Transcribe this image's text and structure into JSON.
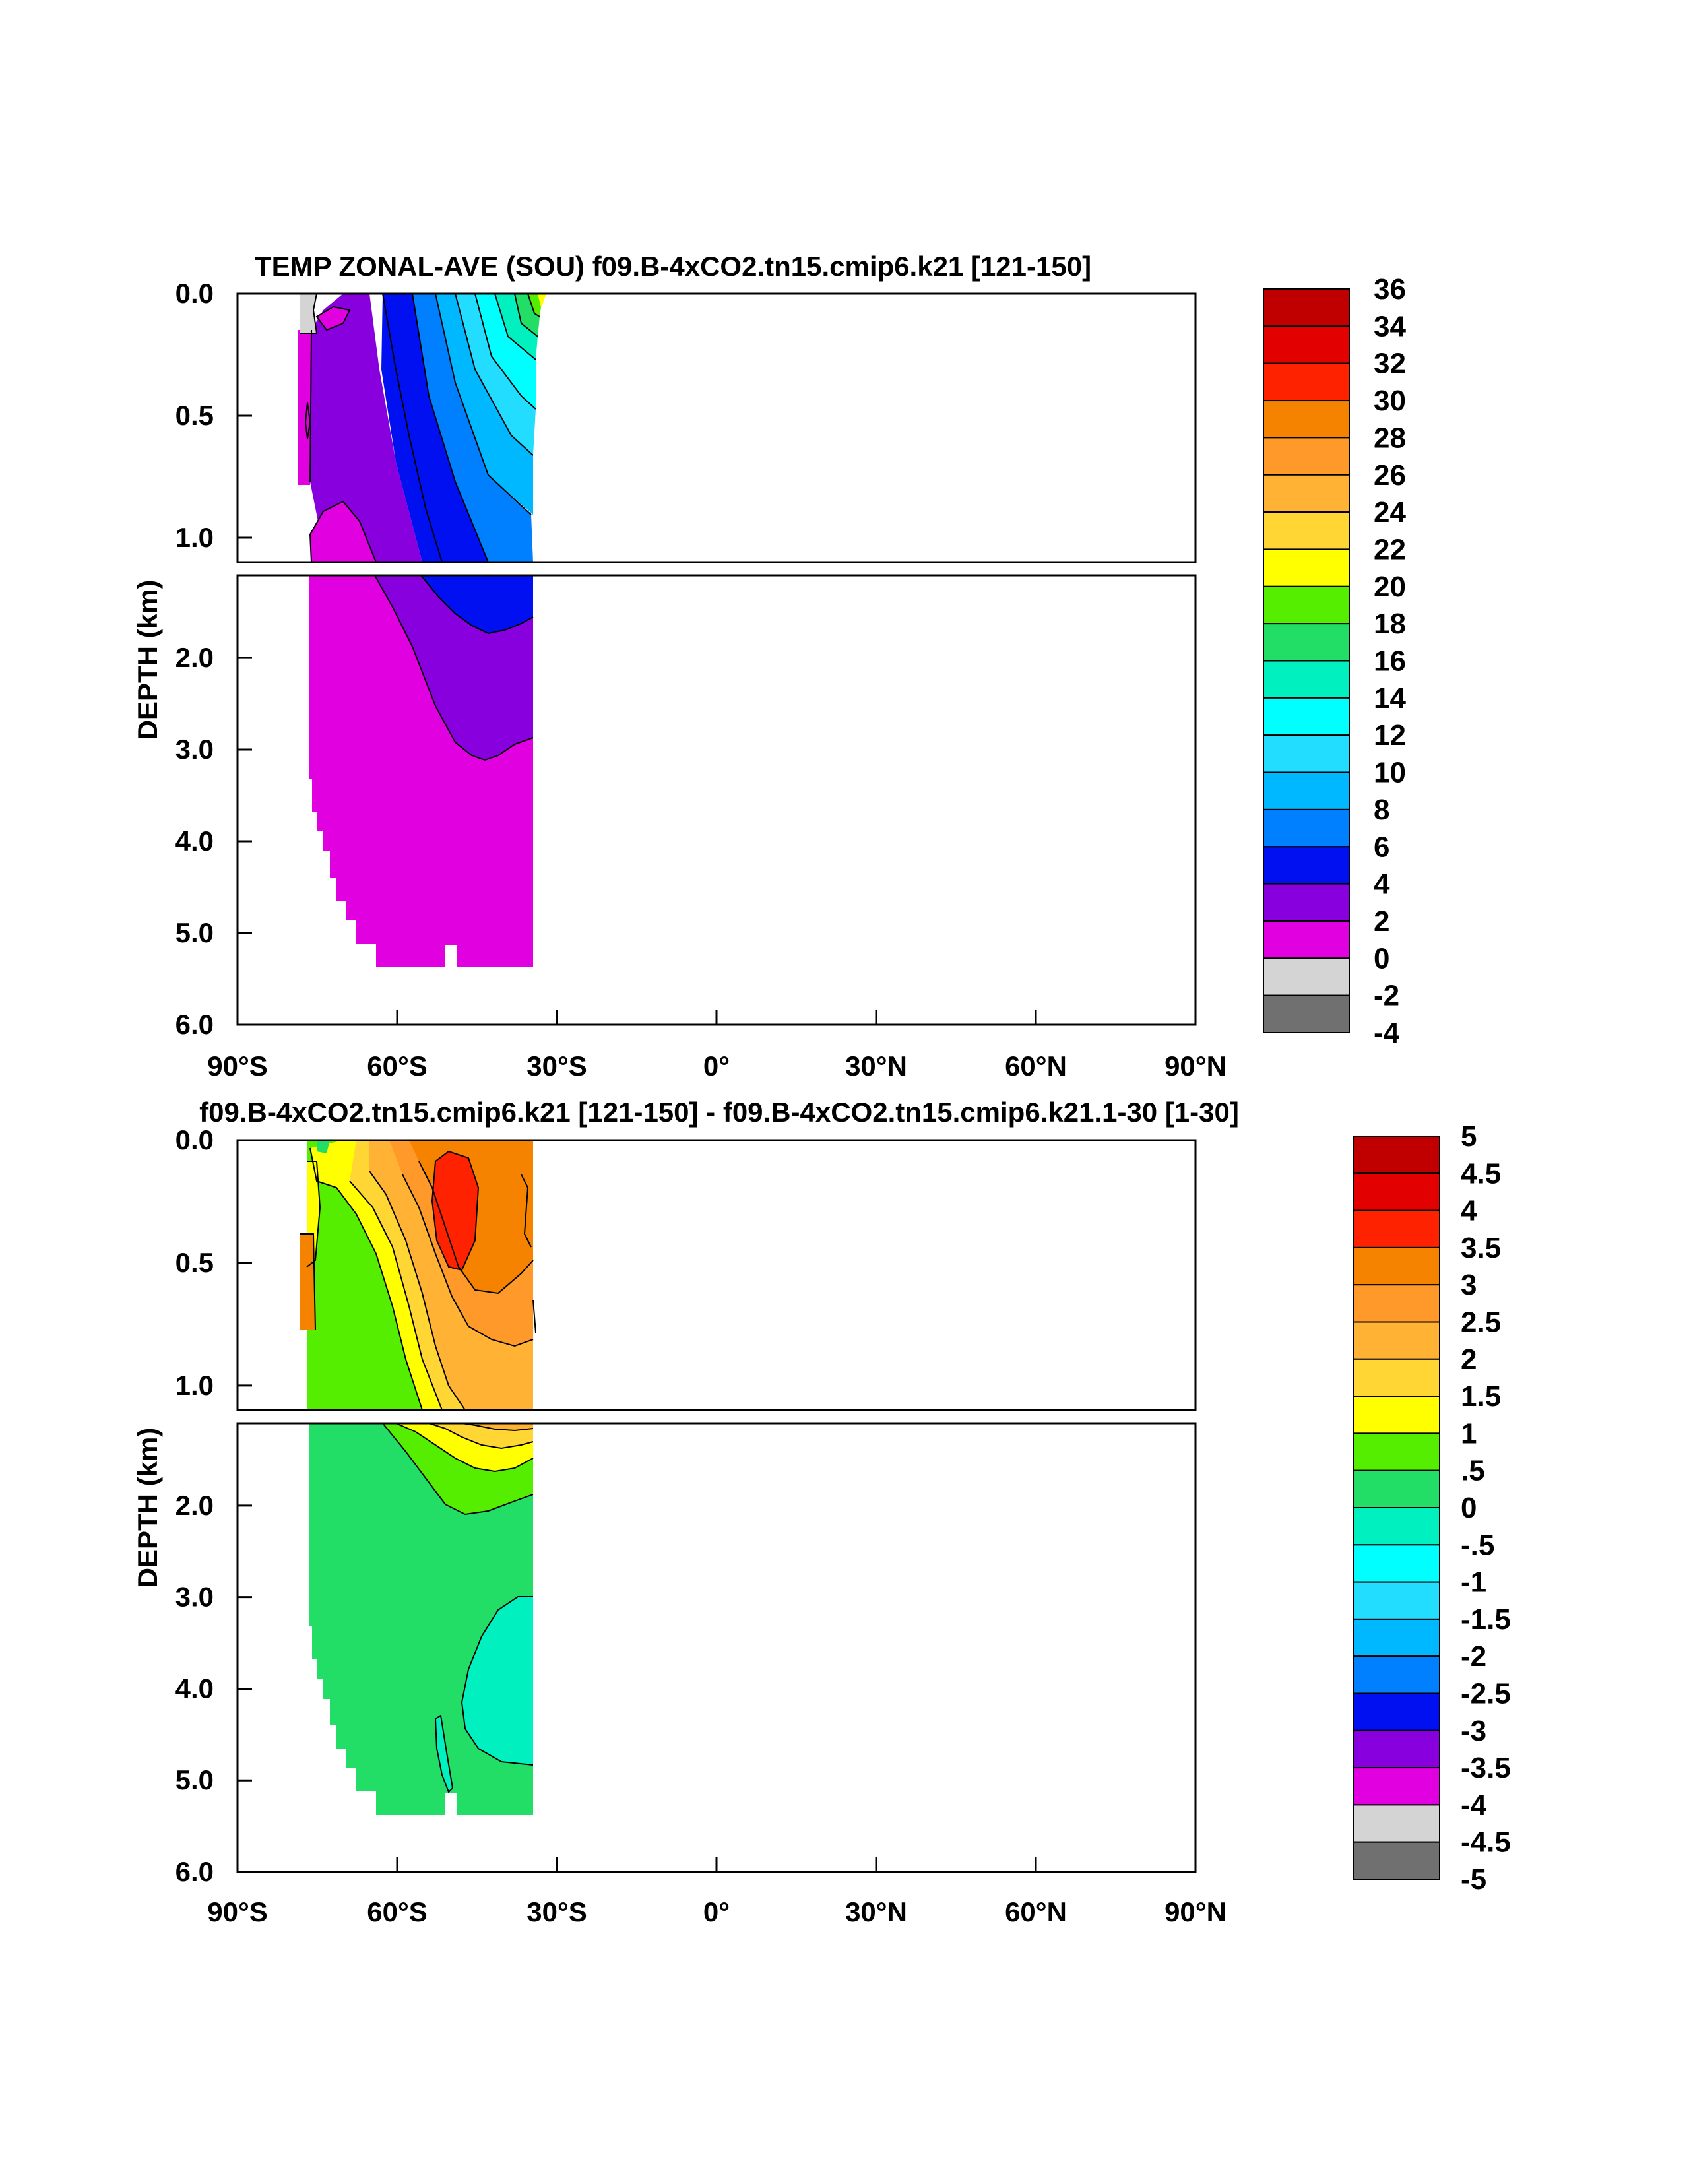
{
  "chart_data": [
    {
      "type": "contour",
      "title": "TEMP ZONAL-AVE (SOU) f09.B-4xCO2.tn15.cmip6.k21 [121-150]",
      "ylabel": "DEPTH (km)",
      "xlabel": "",
      "x_ticks": [
        "90°S",
        "60°S",
        "30°S",
        "0°",
        "30°N",
        "60°N",
        "90°N"
      ],
      "x_range": [
        -90,
        90
      ],
      "upper_panel": {
        "y_range": [
          0,
          1.1
        ],
        "y_ticks": [
          "0.0",
          "0.5",
          "1.0"
        ]
      },
      "lower_panel": {
        "y_range": [
          1.1,
          6.0
        ],
        "y_ticks": [
          "2.0",
          "3.0",
          "4.0",
          "5.0",
          "6.0"
        ]
      },
      "colorbar": {
        "labels": [
          "36",
          "34",
          "32",
          "30",
          "28",
          "26",
          "24",
          "22",
          "20",
          "18",
          "16",
          "14",
          "12",
          "10",
          "8",
          "6",
          "4",
          "2",
          "0",
          "-2",
          "-4"
        ],
        "colors": [
          "#c00000",
          "#e20000",
          "#ff2200",
          "#f58300",
          "#ff9a2a",
          "#ffb233",
          "#ffd633",
          "#ffff00",
          "#55ee00",
          "#22dd66",
          "#00f0c0",
          "#00ffff",
          "#22ddff",
          "#00b8ff",
          "#0080ff",
          "#0010f0",
          "#8800dd",
          "#e000e0",
          "#d4d4d4",
          "#707070"
        ]
      },
      "regions_note": "Data present from ~78°S to ~33°S; Southern Ocean only"
    },
    {
      "type": "contour",
      "title": "f09.B-4xCO2.tn15.cmip6.k21 [121-150] - f09.B-4xCO2.tn15.cmip6.k21.1-30 [1-30]",
      "ylabel": "DEPTH (km)",
      "xlabel": "",
      "x_ticks": [
        "90°S",
        "60°S",
        "30°S",
        "0°",
        "30°N",
        "60°N",
        "90°N"
      ],
      "x_range": [
        -90,
        90
      ],
      "upper_panel": {
        "y_range": [
          0,
          1.1
        ],
        "y_ticks": [
          "0.0",
          "0.5",
          "1.0"
        ]
      },
      "lower_panel": {
        "y_range": [
          1.1,
          6.0
        ],
        "y_ticks": [
          "2.0",
          "3.0",
          "4.0",
          "5.0",
          "6.0"
        ]
      },
      "colorbar": {
        "labels": [
          "5",
          "4.5",
          "4",
          "3.5",
          "3",
          "2.5",
          "2",
          "1.5",
          "1",
          ".5",
          "0",
          "-.5",
          "-1",
          "-1.5",
          "-2",
          "-2.5",
          "-3",
          "-3.5",
          "-4",
          "-4.5",
          "-5"
        ],
        "colors": [
          "#c00000",
          "#e20000",
          "#ff2200",
          "#f58300",
          "#ff9a2a",
          "#ffb233",
          "#ffd633",
          "#ffff00",
          "#55ee00",
          "#22dd66",
          "#00f0c0",
          "#00ffff",
          "#22ddff",
          "#00b8ff",
          "#0080ff",
          "#0010f0",
          "#8800dd",
          "#e000e0",
          "#d4d4d4",
          "#707070"
        ]
      },
      "regions_note": "Warming anomaly strongest (3.5–4) near 50°S at 0.2–0.5 km; weak cooling at depth"
    }
  ]
}
